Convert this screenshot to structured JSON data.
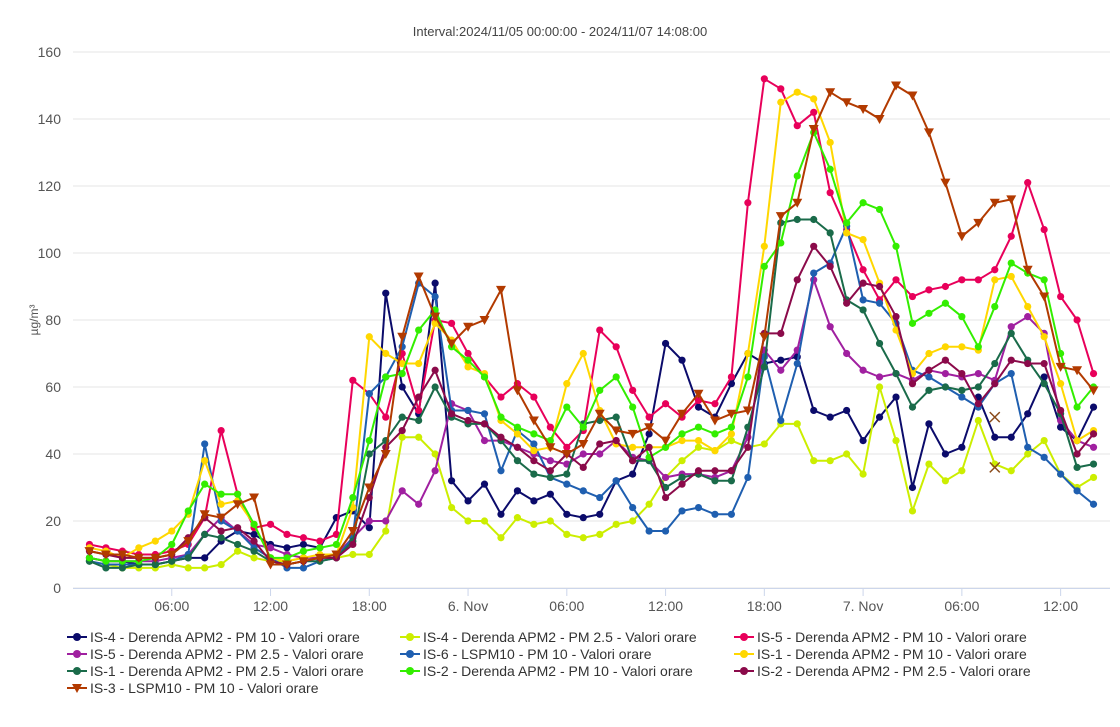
{
  "chart_data": {
    "type": "line",
    "title": "Interval:2024/11/05 00:00:00 - 2024/11/07 14:08:00",
    "ylabel": "µg/m³",
    "xlabel": "",
    "ylim": [
      0,
      160
    ],
    "yticks": [
      0,
      20,
      40,
      60,
      80,
      100,
      120,
      140,
      160
    ],
    "x_start_hour": 1,
    "xlim_hours": [
      0,
      63
    ],
    "xticks": [
      {
        "hour": 6,
        "label": "06:00"
      },
      {
        "hour": 12,
        "label": "12:00"
      },
      {
        "hour": 18,
        "label": "18:00"
      },
      {
        "hour": 24,
        "label": "6. Nov"
      },
      {
        "hour": 30,
        "label": "06:00"
      },
      {
        "hour": 36,
        "label": "12:00"
      },
      {
        "hour": 42,
        "label": "18:00"
      },
      {
        "hour": 48,
        "label": "7. Nov"
      },
      {
        "hour": 54,
        "label": "06:00"
      },
      {
        "hour": 60,
        "label": "12:00"
      }
    ],
    "grid": true,
    "legend_position": "bottom",
    "series": [
      {
        "name": "IS-4 - Derenda APM2 - PM 10 - Valori orare",
        "color": "#0b0b6b",
        "marker": "circle",
        "values": [
          9,
          8,
          8,
          7,
          7,
          8,
          9,
          9,
          14,
          17,
          16,
          13,
          12,
          13,
          12,
          21,
          23,
          18,
          88,
          60,
          52,
          91,
          32,
          26,
          31,
          22,
          29,
          26,
          28,
          22,
          21,
          22,
          32,
          34,
          46,
          73,
          68,
          54,
          51,
          61,
          70,
          67,
          68,
          69,
          53,
          51,
          53,
          44,
          51,
          57,
          30,
          49,
          40,
          42,
          57,
          45,
          45,
          52,
          63,
          48,
          44,
          54
        ]
      },
      {
        "name": "IS-4 - Derenda APM2 - PM 2.5 - Valori orare",
        "color": "#ccee00",
        "marker": "circle",
        "values": [
          8,
          7,
          6,
          6,
          6,
          7,
          6,
          6,
          7,
          11,
          9,
          8,
          8,
          9,
          9,
          9,
          10,
          10,
          17,
          45,
          45,
          40,
          24,
          20,
          20,
          15,
          21,
          19,
          20,
          16,
          15,
          16,
          19,
          20,
          25,
          33,
          38,
          42,
          41,
          44,
          42,
          43,
          49,
          49,
          38,
          38,
          40,
          34,
          60,
          44,
          23,
          37,
          32,
          35,
          50,
          37,
          35,
          40,
          44,
          34,
          30,
          33
        ]
      },
      {
        "name": "IS-5 - Derenda APM2 - PM 10 - Valori orare",
        "color": "#e8005a",
        "marker": "circle",
        "values": [
          13,
          12,
          11,
          10,
          10,
          11,
          13,
          21,
          47,
          28,
          18,
          19,
          16,
          15,
          14,
          16,
          62,
          58,
          51,
          70,
          53,
          80,
          79,
          70,
          63,
          57,
          61,
          57,
          48,
          42,
          47,
          77,
          72,
          59,
          51,
          55,
          51,
          56,
          55,
          63,
          115,
          152,
          149,
          138,
          142,
          118,
          107,
          95,
          86,
          92,
          87,
          89,
          90,
          92,
          92,
          95,
          105,
          121,
          107,
          87,
          80,
          64
        ]
      },
      {
        "name": "IS-5 - Derenda APM2 - PM 2.5 - Valori orare",
        "color": "#a020a0",
        "marker": "circle",
        "values": [
          9,
          8,
          8,
          8,
          8,
          9,
          10,
          16,
          21,
          17,
          13,
          12,
          10,
          9,
          9,
          10,
          15,
          20,
          20,
          29,
          25,
          35,
          55,
          53,
          44,
          44,
          42,
          40,
          38,
          37,
          40,
          40,
          44,
          39,
          38,
          33,
          34,
          34,
          33,
          35,
          45,
          71,
          65,
          71,
          92,
          78,
          70,
          65,
          63,
          64,
          62,
          65,
          64,
          63,
          64,
          62,
          78,
          81,
          76,
          50,
          44,
          42
        ]
      },
      {
        "name": "IS-6 - LSPM10 - PM 10 - Valori orare",
        "color": "#1f5fb0",
        "marker": "circle",
        "values": [
          8,
          7,
          7,
          7,
          7,
          8,
          10,
          43,
          20,
          17,
          12,
          9,
          6,
          6,
          8,
          9,
          15,
          58,
          63,
          72,
          91,
          87,
          53,
          53,
          52,
          35,
          47,
          43,
          33,
          31,
          29,
          27,
          32,
          24,
          17,
          17,
          23,
          24,
          22,
          22,
          33,
          69,
          50,
          67,
          94,
          97,
          108,
          86,
          85,
          79,
          65,
          63,
          60,
          57,
          54,
          61,
          64,
          42,
          39,
          34,
          29,
          25
        ]
      },
      {
        "name": "IS-1 - Derenda APM2 - PM 10 - Valori orare",
        "color": "#ffd700",
        "marker": "circle",
        "values": [
          12,
          11,
          9,
          12,
          14,
          17,
          22,
          38,
          25,
          26,
          19,
          9,
          8,
          9,
          10,
          10,
          24,
          75,
          70,
          67,
          67,
          79,
          74,
          66,
          64,
          50,
          46,
          41,
          42,
          61,
          70,
          53,
          43,
          42,
          42,
          42,
          44,
          44,
          41,
          46,
          70,
          102,
          145,
          148,
          146,
          133,
          106,
          104,
          91,
          77,
          64,
          70,
          72,
          72,
          71,
          92,
          93,
          84,
          75,
          61,
          44,
          47
        ]
      },
      {
        "name": "IS-1 - Derenda APM2 - PM 2.5 - Valori orare",
        "color": "#1a6b4a",
        "marker": "circle",
        "values": [
          8,
          6,
          6,
          7,
          7,
          8,
          9,
          16,
          15,
          13,
          11,
          8,
          7,
          8,
          8,
          9,
          14,
          40,
          44,
          51,
          50,
          60,
          51,
          49,
          49,
          44,
          38,
          34,
          33,
          34,
          49,
          50,
          51,
          38,
          38,
          30,
          33,
          34,
          32,
          32,
          48,
          66,
          109,
          110,
          110,
          106,
          86,
          83,
          73,
          64,
          54,
          59,
          60,
          59,
          60,
          67,
          76,
          68,
          61,
          52,
          36,
          37
        ]
      },
      {
        "name": "IS-2 - Derenda APM2 - PM 10 - Valori orare",
        "color": "#33ee00",
        "marker": "circle",
        "values": [
          9,
          8,
          8,
          8,
          9,
          13,
          23,
          31,
          28,
          28,
          19,
          9,
          9,
          11,
          12,
          13,
          27,
          44,
          63,
          64,
          77,
          83,
          72,
          68,
          63,
          51,
          48,
          46,
          44,
          54,
          48,
          59,
          63,
          54,
          39,
          42,
          46,
          48,
          46,
          48,
          63,
          96,
          103,
          123,
          136,
          125,
          109,
          115,
          113,
          102,
          79,
          82,
          85,
          81,
          72,
          84,
          97,
          94,
          92,
          70,
          54,
          60
        ]
      },
      {
        "name": "IS-2 - Derenda APM2 - PM 2.5 - Valori orare",
        "color": "#8b0a4a",
        "marker": "circle",
        "values": [
          11,
          10,
          9,
          9,
          9,
          10,
          15,
          21,
          17,
          18,
          14,
          8,
          7,
          8,
          9,
          9,
          13,
          27,
          42,
          47,
          57,
          65,
          52,
          50,
          49,
          45,
          42,
          38,
          35,
          40,
          36,
          43,
          44,
          38,
          42,
          27,
          31,
          35,
          35,
          35,
          42,
          76,
          76,
          92,
          102,
          96,
          85,
          91,
          90,
          81,
          61,
          65,
          68,
          64,
          55,
          61,
          68,
          67,
          67,
          53,
          40,
          46
        ]
      },
      {
        "name": "IS-3 - LSPM10 - PM 10 - Valori orare",
        "color": "#b23a00",
        "marker": "triangle-down",
        "values": [
          11,
          10,
          10,
          9,
          9,
          10,
          14,
          22,
          21,
          25,
          27,
          7,
          7,
          8,
          9,
          10,
          17,
          30,
          40,
          75,
          93,
          81,
          73,
          78,
          80,
          89,
          59,
          50,
          42,
          40,
          43,
          52,
          47,
          46,
          48,
          44,
          52,
          58,
          50,
          52,
          53,
          75,
          111,
          115,
          137,
          148,
          145,
          143,
          140,
          150,
          147,
          136,
          121,
          105,
          109,
          115,
          116,
          95,
          87,
          66,
          65,
          59
        ]
      }
    ],
    "annotations": [
      {
        "type": "x-mark",
        "series": "IS-4 - Derenda APM2 - PM 2.5 - Valori orare",
        "x_hour": 56,
        "y": 36
      },
      {
        "type": "x-mark",
        "series": "IS-6 - LSPM10 - PM 10 - Valori orare",
        "x_hour": 56,
        "y": 51
      }
    ]
  }
}
